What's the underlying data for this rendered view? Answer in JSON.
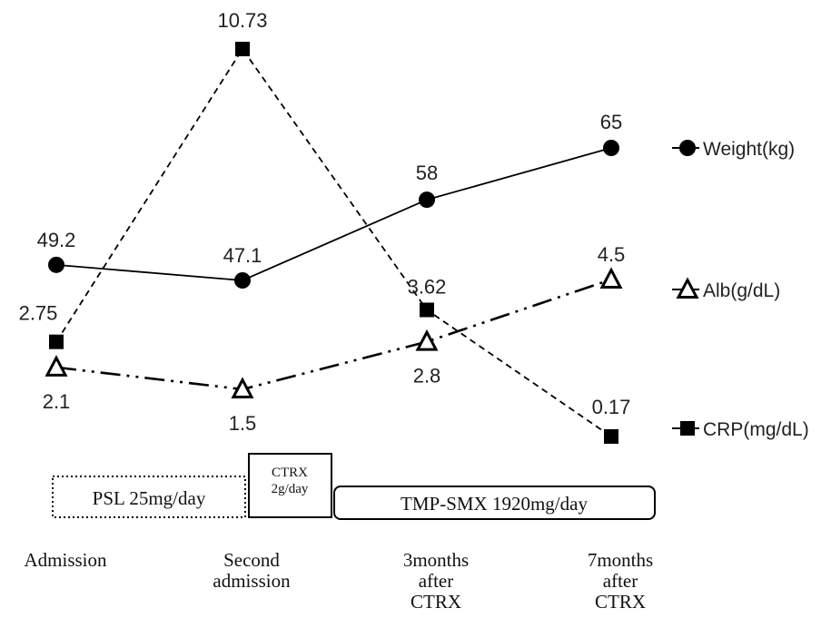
{
  "chart_data": {
    "type": "line",
    "categories": [
      [
        "Admission"
      ],
      [
        "Second",
        "admission"
      ],
      [
        "3months",
        "after",
        "CTRX"
      ],
      [
        "7months",
        "after",
        "CTRX"
      ]
    ],
    "series": [
      {
        "name": "Weight(kg)",
        "values": [
          49.2,
          47.1,
          58,
          65
        ],
        "labels": [
          "49.2",
          "47.1",
          "58",
          "65"
        ],
        "marker": "filled-circle",
        "line_style": "solid",
        "color": "#000000"
      },
      {
        "name": "Alb(g/dL)",
        "values": [
          2.1,
          1.5,
          2.8,
          4.5
        ],
        "labels": [
          "2.1",
          "1.5",
          "2.8",
          "4.5"
        ],
        "marker": "open-triangle",
        "line_style": "dash-dot-dot",
        "color": "#000000"
      },
      {
        "name": "CRP(mg/dL)",
        "values": [
          2.75,
          10.73,
          3.62,
          0.17
        ],
        "labels": [
          "2.75",
          "10.73",
          "3.62",
          "0.17"
        ],
        "marker": "filled-square",
        "line_style": "dashed",
        "color": "#000000"
      }
    ],
    "legend_placement": "right",
    "grid": false,
    "axes_visible": false,
    "treatments": [
      {
        "label": [
          "PSL 25mg/day"
        ],
        "border": "dotted",
        "from": 0,
        "to": 1
      },
      {
        "label": [
          "CTRX",
          "2g/day"
        ],
        "border": "solid",
        "from": 1,
        "to": 1.5
      },
      {
        "label": [
          "TMP-SMX 1920mg/day"
        ],
        "border": "rounded",
        "from": 1.5,
        "to": 3
      }
    ]
  }
}
